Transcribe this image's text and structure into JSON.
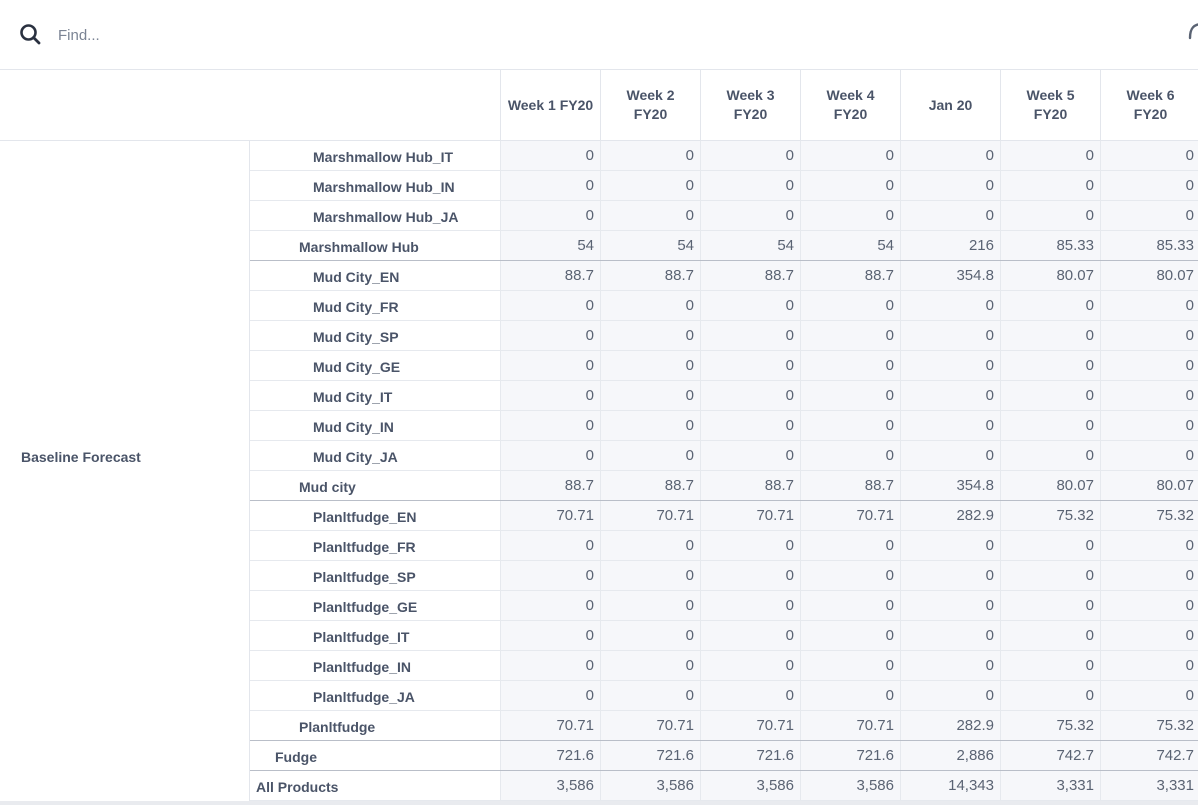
{
  "search": {
    "placeholder": "Find..."
  },
  "columns": [
    "Week 1 FY20",
    "Week 2\nFY20",
    "Week 3\nFY20",
    "Week 4\nFY20",
    "Jan 20",
    "Week 5\nFY20",
    "Week 6\nFY20"
  ],
  "row_group": "Baseline Forecast",
  "rows": [
    {
      "label": "Marshmallow Hub_IT",
      "level": 3,
      "values": [
        "0",
        "0",
        "0",
        "0",
        "0",
        "0",
        "0"
      ]
    },
    {
      "label": "Marshmallow Hub_IN",
      "level": 3,
      "values": [
        "0",
        "0",
        "0",
        "0",
        "0",
        "0",
        "0"
      ]
    },
    {
      "label": "Marshmallow Hub_JA",
      "level": 3,
      "values": [
        "0",
        "0",
        "0",
        "0",
        "0",
        "0",
        "0"
      ]
    },
    {
      "label": "Marshmallow Hub",
      "level": 2,
      "values": [
        "54",
        "54",
        "54",
        "54",
        "216",
        "85.33",
        "85.33"
      ]
    },
    {
      "label": "Mud City_EN",
      "level": 3,
      "values": [
        "88.7",
        "88.7",
        "88.7",
        "88.7",
        "354.8",
        "80.07",
        "80.07"
      ]
    },
    {
      "label": "Mud City_FR",
      "level": 3,
      "values": [
        "0",
        "0",
        "0",
        "0",
        "0",
        "0",
        "0"
      ]
    },
    {
      "label": "Mud City_SP",
      "level": 3,
      "values": [
        "0",
        "0",
        "0",
        "0",
        "0",
        "0",
        "0"
      ]
    },
    {
      "label": "Mud City_GE",
      "level": 3,
      "values": [
        "0",
        "0",
        "0",
        "0",
        "0",
        "0",
        "0"
      ]
    },
    {
      "label": "Mud City_IT",
      "level": 3,
      "values": [
        "0",
        "0",
        "0",
        "0",
        "0",
        "0",
        "0"
      ]
    },
    {
      "label": "Mud City_IN",
      "level": 3,
      "values": [
        "0",
        "0",
        "0",
        "0",
        "0",
        "0",
        "0"
      ]
    },
    {
      "label": "Mud City_JA",
      "level": 3,
      "values": [
        "0",
        "0",
        "0",
        "0",
        "0",
        "0",
        "0"
      ]
    },
    {
      "label": "Mud city",
      "level": 2,
      "values": [
        "88.7",
        "88.7",
        "88.7",
        "88.7",
        "354.8",
        "80.07",
        "80.07"
      ]
    },
    {
      "label": "Planltfudge_EN",
      "level": 3,
      "values": [
        "70.71",
        "70.71",
        "70.71",
        "70.71",
        "282.9",
        "75.32",
        "75.32"
      ]
    },
    {
      "label": "Planltfudge_FR",
      "level": 3,
      "values": [
        "0",
        "0",
        "0",
        "0",
        "0",
        "0",
        "0"
      ]
    },
    {
      "label": "Planltfudge_SP",
      "level": 3,
      "values": [
        "0",
        "0",
        "0",
        "0",
        "0",
        "0",
        "0"
      ]
    },
    {
      "label": "Planltfudge_GE",
      "level": 3,
      "values": [
        "0",
        "0",
        "0",
        "0",
        "0",
        "0",
        "0"
      ]
    },
    {
      "label": "Planltfudge_IT",
      "level": 3,
      "values": [
        "0",
        "0",
        "0",
        "0",
        "0",
        "0",
        "0"
      ]
    },
    {
      "label": "Planltfudge_IN",
      "level": 3,
      "values": [
        "0",
        "0",
        "0",
        "0",
        "0",
        "0",
        "0"
      ]
    },
    {
      "label": "Planltfudge_JA",
      "level": 3,
      "values": [
        "0",
        "0",
        "0",
        "0",
        "0",
        "0",
        "0"
      ]
    },
    {
      "label": "Planltfudge",
      "level": 2,
      "values": [
        "70.71",
        "70.71",
        "70.71",
        "70.71",
        "282.9",
        "75.32",
        "75.32"
      ]
    },
    {
      "label": "Fudge",
      "level": 1,
      "values": [
        "721.6",
        "721.6",
        "721.6",
        "721.6",
        "2,886",
        "742.7",
        "742.7"
      ]
    },
    {
      "label": "All Products",
      "level": 0,
      "values": [
        "3,586",
        "3,586",
        "3,586",
        "3,586",
        "14,343",
        "3,331",
        "3,331"
      ]
    }
  ]
}
